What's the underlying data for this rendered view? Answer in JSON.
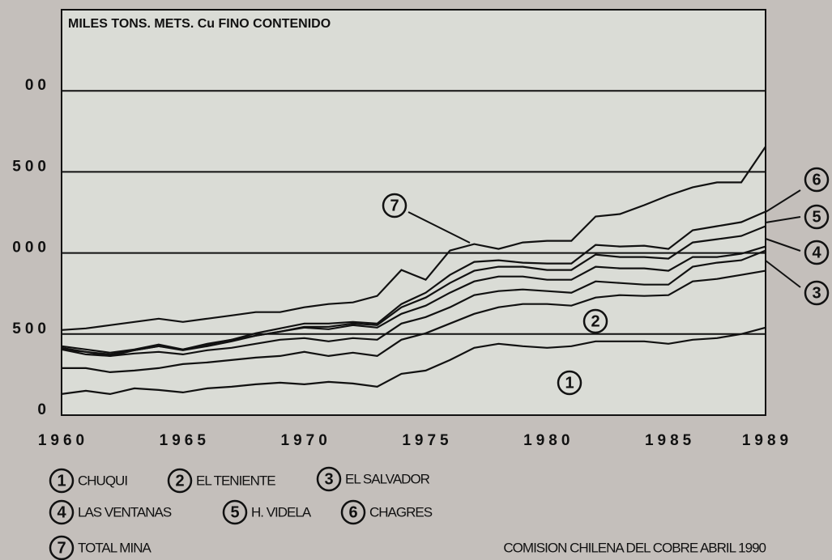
{
  "chart_data": {
    "type": "line",
    "title": "MILES TONS. METS. Cu FINO CONTENIDO",
    "source": "COMISION CHILENA DEL COBRE ABRIL 1990",
    "x": [
      1960,
      1961,
      1962,
      1963,
      1964,
      1965,
      1966,
      1967,
      1968,
      1969,
      1970,
      1971,
      1972,
      1973,
      1974,
      1975,
      1976,
      1977,
      1978,
      1979,
      1980,
      1981,
      1982,
      1983,
      1984,
      1985,
      1986,
      1987,
      1988,
      1989
    ],
    "xlim": [
      1960,
      1989
    ],
    "xticks": [
      1960,
      1965,
      1970,
      1975,
      1980,
      1985,
      1989
    ],
    "ylim": [
      0,
      2500
    ],
    "yticks": [
      0,
      500,
      {
        "value": 1000,
        "label": "000"
      },
      {
        "value": 1500,
        "label": "500"
      },
      {
        "value": 2000,
        "label": "00"
      }
    ],
    "grid": true,
    "series": [
      {
        "key": "1",
        "name": "CHUQUI",
        "color": "#111111",
        "values": [
          130,
          150,
          130,
          165,
          155,
          140,
          165,
          175,
          190,
          200,
          190,
          205,
          195,
          175,
          255,
          275,
          340,
          415,
          440,
          425,
          415,
          425,
          455,
          455,
          455,
          440,
          465,
          475,
          500,
          540
        ]
      },
      {
        "key": "2",
        "name": "EL TENIENTE",
        "color": "#111111",
        "values": [
          290,
          290,
          265,
          275,
          290,
          315,
          325,
          340,
          355,
          365,
          390,
          365,
          385,
          365,
          465,
          505,
          565,
          625,
          665,
          685,
          685,
          675,
          725,
          740,
          735,
          740,
          825,
          840,
          865,
          890
        ]
      },
      {
        "key": "3",
        "name": "EL SALVADOR",
        "color": "#111111",
        "values": [
          405,
          390,
          365,
          380,
          390,
          375,
          400,
          415,
          440,
          465,
          475,
          455,
          475,
          465,
          565,
          605,
          665,
          740,
          765,
          775,
          765,
          755,
          825,
          815,
          805,
          805,
          915,
          940,
          955,
          1015
        ]
      },
      {
        "key": "4",
        "name": "LAS VENTANAS",
        "color": "#111111",
        "values": [
          405,
          375,
          365,
          400,
          425,
          405,
          440,
          465,
          490,
          515,
          540,
          530,
          555,
          540,
          625,
          675,
          755,
          825,
          855,
          855,
          835,
          835,
          915,
          905,
          905,
          890,
          975,
          975,
          995,
          1040
        ]
      },
      {
        "key": "5",
        "name": "H. VIDELA",
        "color": "#111111",
        "values": [
          415,
          390,
          375,
          400,
          425,
          400,
          425,
          455,
          490,
          515,
          545,
          545,
          565,
          555,
          665,
          725,
          815,
          890,
          915,
          915,
          895,
          895,
          990,
          975,
          975,
          965,
          1065,
          1085,
          1105,
          1165
        ]
      },
      {
        "key": "6",
        "name": "CHAGRES",
        "color": "#111111",
        "values": [
          425,
          405,
          385,
          405,
          435,
          405,
          435,
          465,
          505,
          535,
          565,
          565,
          575,
          565,
          685,
          755,
          865,
          945,
          955,
          940,
          935,
          935,
          1050,
          1040,
          1045,
          1025,
          1140,
          1165,
          1190,
          1255
        ]
      },
      {
        "key": "7",
        "name": "TOTAL MINA",
        "color": "#111111",
        "values": [
          525,
          535,
          555,
          575,
          595,
          575,
          595,
          615,
          635,
          635,
          665,
          685,
          695,
          735,
          895,
          835,
          1015,
          1055,
          1025,
          1065,
          1075,
          1075,
          1225,
          1240,
          1295,
          1355,
          1405,
          1435,
          1435,
          1655
        ]
      }
    ]
  }
}
